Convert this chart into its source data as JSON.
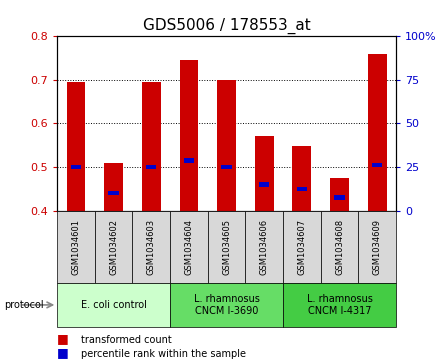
{
  "title": "GDS5006 / 178553_at",
  "samples": [
    "GSM1034601",
    "GSM1034602",
    "GSM1034603",
    "GSM1034604",
    "GSM1034605",
    "GSM1034606",
    "GSM1034607",
    "GSM1034608",
    "GSM1034609"
  ],
  "transformed_count": [
    0.695,
    0.51,
    0.695,
    0.745,
    0.7,
    0.57,
    0.548,
    0.475,
    0.76
  ],
  "percentile_rank": [
    0.5,
    0.44,
    0.5,
    0.515,
    0.5,
    0.46,
    0.45,
    0.43,
    0.505
  ],
  "ylim": [
    0.4,
    0.8
  ],
  "ylim_right": [
    0,
    100
  ],
  "yticks_left": [
    0.4,
    0.5,
    0.6,
    0.7,
    0.8
  ],
  "yticks_right": [
    0,
    25,
    50,
    75,
    100
  ],
  "bar_color": "#cc0000",
  "blue_color": "#0000cc",
  "baseline": 0.4,
  "groups": [
    {
      "label": "E. coli control",
      "start": 0,
      "end": 3,
      "color": "#ccffcc"
    },
    {
      "label": "L. rhamnosus\nCNCM I-3690",
      "start": 3,
      "end": 6,
      "color": "#66dd66"
    },
    {
      "label": "L. rhamnosus\nCNCM I-4317",
      "start": 6,
      "end": 9,
      "color": "#44cc44"
    }
  ],
  "legend_items": [
    {
      "label": "transformed count",
      "color": "#cc0000"
    },
    {
      "label": "percentile rank within the sample",
      "color": "#0000cc"
    }
  ],
  "protocol_label": "protocol",
  "title_fontsize": 11,
  "tick_fontsize": 8
}
